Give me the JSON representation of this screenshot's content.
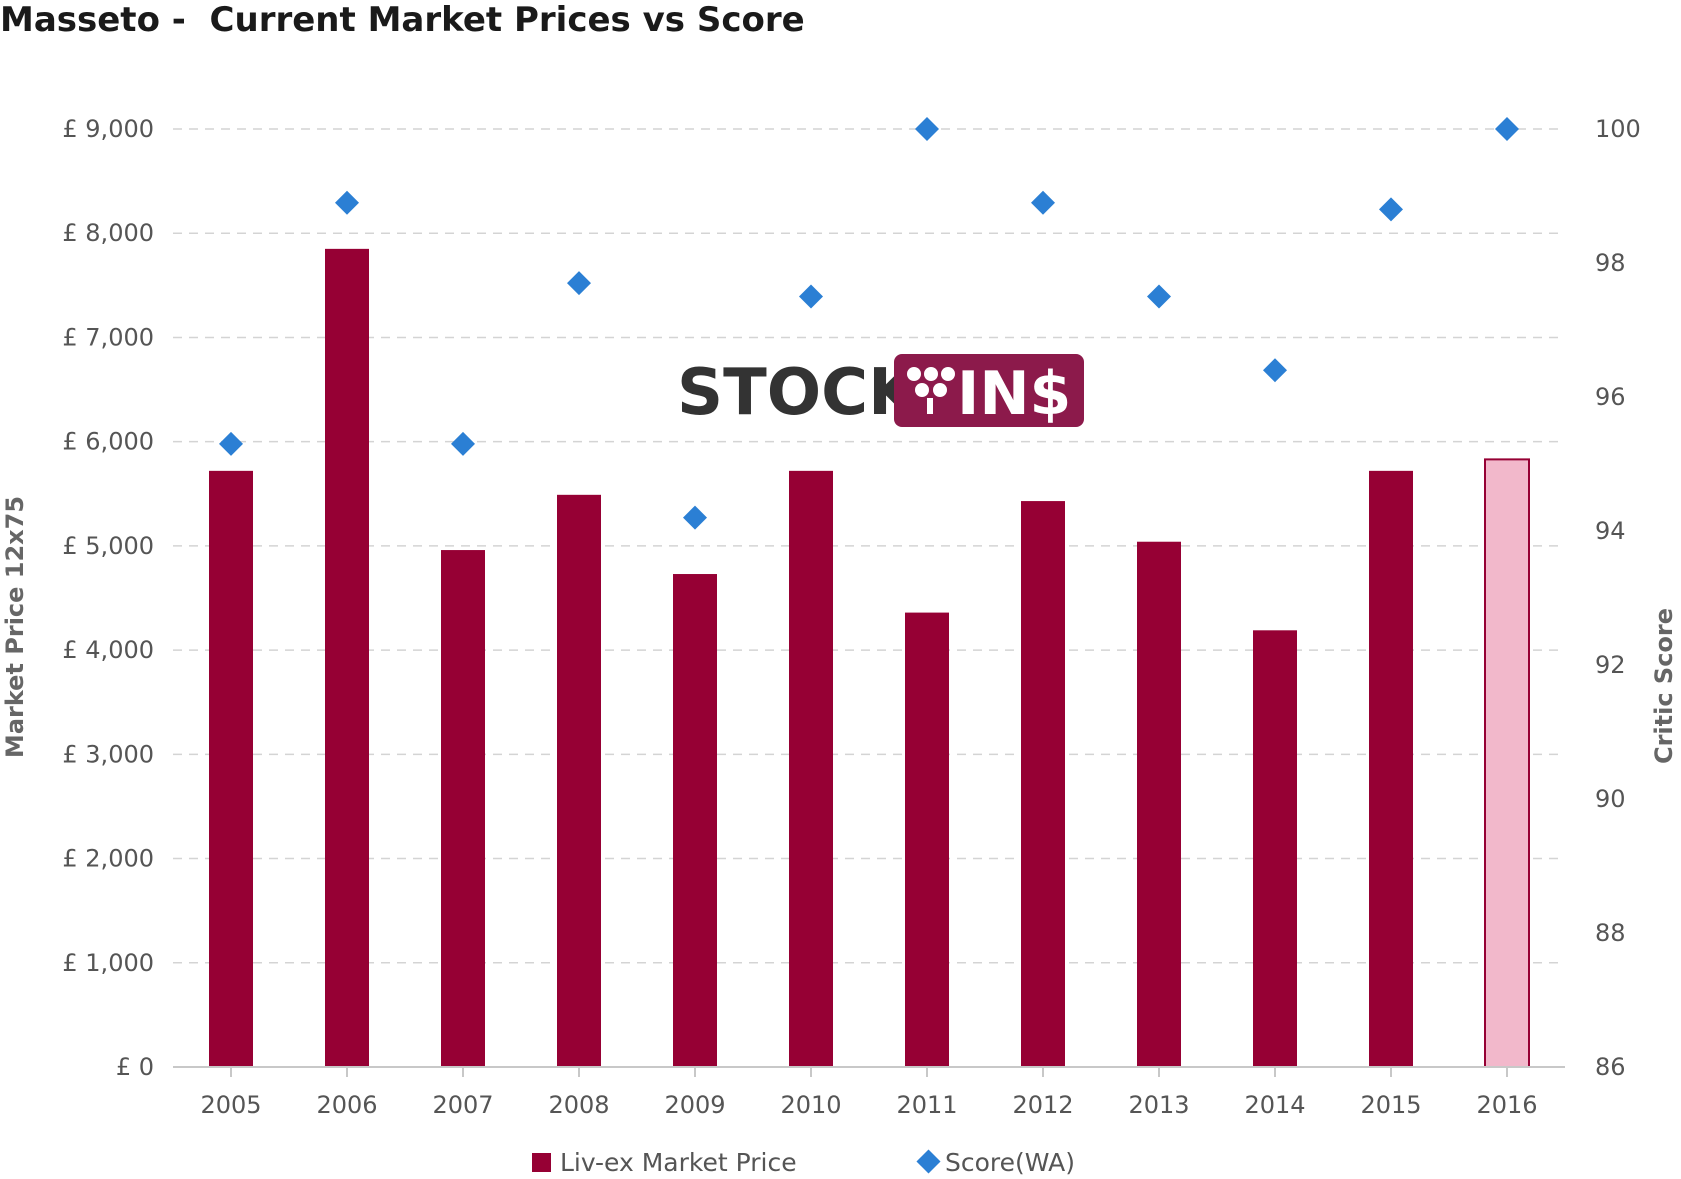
{
  "chart_data": {
    "type": "bar",
    "title": "Masseto -  Current Market Prices vs Score",
    "categories": [
      "2005",
      "2006",
      "2007",
      "2008",
      "2009",
      "2010",
      "2011",
      "2012",
      "2013",
      "2014",
      "2015",
      "2016"
    ],
    "series": [
      {
        "name": "Liv-ex Market Price",
        "type": "bar",
        "axis": "left",
        "color": "#960034",
        "values": [
          5720,
          7850,
          4960,
          5490,
          4730,
          5720,
          4360,
          5430,
          5040,
          4190,
          5720,
          5830
        ],
        "highlight": {
          "index": 11,
          "fill": "#f2b8cb",
          "stroke": "#960034"
        }
      },
      {
        "name": "Score(WA)",
        "type": "scatter",
        "marker": "diamond",
        "axis": "right",
        "color": "#2b7fd4",
        "values": [
          95.3,
          98.9,
          95.3,
          97.7,
          94.2,
          97.5,
          100,
          98.9,
          97.5,
          96.4,
          98.8,
          100
        ]
      }
    ],
    "y_left": {
      "label": "Market Price 12x75",
      "ylim": [
        0,
        9000
      ],
      "ticks": [
        0,
        1000,
        2000,
        3000,
        4000,
        5000,
        6000,
        7000,
        8000,
        9000
      ],
      "tick_labels": [
        "£ 0",
        "£ 1,000",
        "£ 2,000",
        "£ 3,000",
        "£ 4,000",
        "£ 5,000",
        "£ 6,000",
        "£ 7,000",
        "£ 8,000",
        "£ 9,000"
      ]
    },
    "y_right": {
      "label": "Critic Score",
      "ylim": [
        86,
        100
      ],
      "ticks": [
        86,
        88,
        90,
        92,
        94,
        96,
        98,
        100
      ],
      "tick_labels": [
        "86",
        "88",
        "90",
        "92",
        "94",
        "96",
        "98",
        "100"
      ]
    },
    "grid": true,
    "grid_style": "dashed",
    "legend": {
      "position": "bottom"
    }
  },
  "watermark": {
    "text_left": "STOCK",
    "text_right": "IN$",
    "bg_color": "#8c1a4b"
  }
}
